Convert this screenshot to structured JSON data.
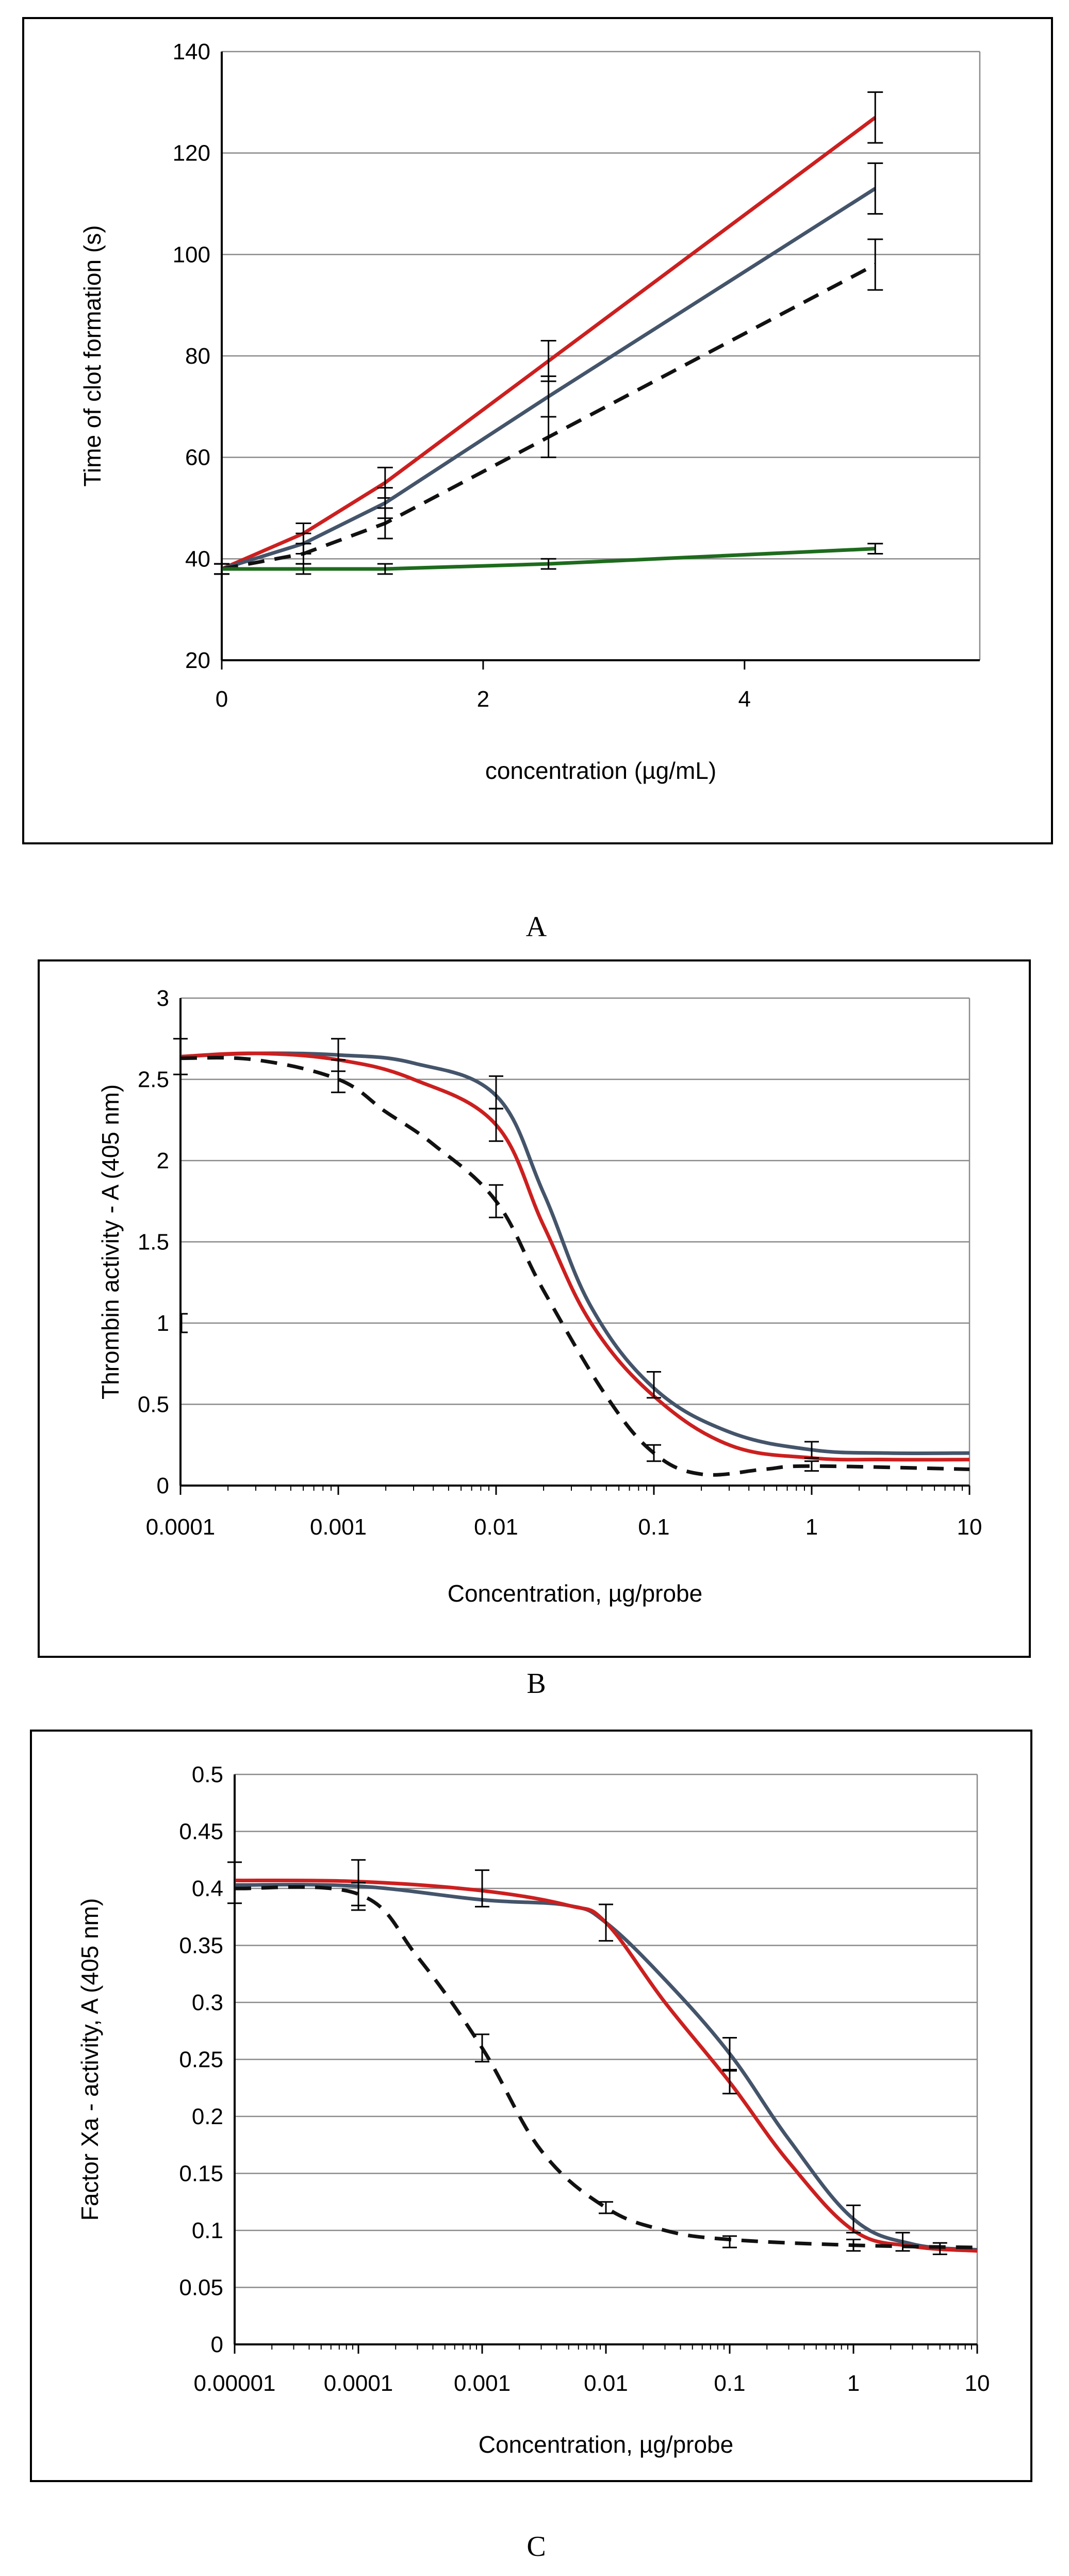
{
  "chart_data": [
    {
      "type": "line",
      "panel_label": "A",
      "title": "",
      "xlabel": "concentration (µg/mL)",
      "ylabel": "Time of clot formation (s)",
      "xscale": "linear",
      "xlim": [
        0,
        5.8
      ],
      "ylim": [
        20,
        140
      ],
      "grid": true,
      "x_ticks": [
        0,
        2,
        4
      ],
      "x_tick_labels": [
        "0",
        "2",
        "4"
      ],
      "y_ticks": [
        20,
        40,
        60,
        80,
        100,
        120,
        140
      ],
      "y_tick_labels": [
        "20",
        "40",
        "60",
        "80",
        "100",
        "120",
        "140"
      ],
      "series": [
        {
          "name": "red",
          "color": "#cc1f1f",
          "dash": "solid",
          "x": [
            0,
            0.625,
            1.25,
            2.5,
            5
          ],
          "values": [
            38,
            45,
            55,
            79,
            127
          ],
          "err": [
            1,
            2,
            3,
            4,
            5
          ]
        },
        {
          "name": "gray",
          "color": "#44546a",
          "dash": "solid",
          "x": [
            0,
            0.625,
            1.25,
            2.5,
            5
          ],
          "values": [
            38,
            43,
            51,
            72,
            113
          ],
          "err": [
            1,
            2,
            3,
            4,
            5
          ]
        },
        {
          "name": "black-dashed",
          "color": "#111111",
          "dash": "dashed",
          "x": [
            0,
            0.625,
            1.25,
            2.5,
            5
          ],
          "values": [
            38,
            41,
            47,
            64,
            98
          ],
          "err": [
            1,
            2,
            3,
            4,
            5
          ]
        },
        {
          "name": "green",
          "color": "#1e6b1e",
          "dash": "solid",
          "x": [
            0,
            0.625,
            1.25,
            2.5,
            5
          ],
          "values": [
            38,
            38,
            38,
            39,
            42
          ],
          "err": [
            1,
            1,
            1,
            1,
            1
          ]
        }
      ]
    },
    {
      "type": "line",
      "panel_label": "B",
      "title": "",
      "xlabel": "Concentration, µg/probe",
      "ylabel": "Thrombin activity - A (405 nm)",
      "xscale": "log",
      "xlim": [
        0.0001,
        10
      ],
      "ylim": [
        0,
        3
      ],
      "grid": true,
      "x_ticks": [
        0.0001,
        0.001,
        0.01,
        0.1,
        1,
        10
      ],
      "x_tick_labels": [
        "0.0001",
        "0.001",
        "0.01",
        "0.1",
        "1",
        "10"
      ],
      "y_ticks": [
        0,
        0.5,
        1,
        1.5,
        2,
        2.5,
        3
      ],
      "y_tick_labels": [
        "0",
        "0.5",
        "1",
        "1.5",
        "2",
        "2.5",
        "3"
      ],
      "series": [
        {
          "name": "gray",
          "color": "#44546a",
          "dash": "solid",
          "x": [
            0.0001,
            0.0003,
            0.001,
            0.003,
            0.01,
            0.02,
            0.04,
            0.1,
            0.3,
            1,
            3,
            10
          ],
          "values": [
            2.64,
            2.66,
            2.65,
            2.6,
            2.4,
            1.8,
            1.1,
            0.6,
            0.33,
            0.22,
            0.2,
            0.2
          ]
        },
        {
          "name": "red",
          "color": "#cc1f1f",
          "dash": "solid",
          "x": [
            0.0001,
            0.0003,
            0.001,
            0.003,
            0.01,
            0.02,
            0.04,
            0.1,
            0.3,
            1,
            3,
            10
          ],
          "values": [
            2.64,
            2.66,
            2.62,
            2.5,
            2.22,
            1.6,
            1.0,
            0.55,
            0.25,
            0.17,
            0.16,
            0.16
          ]
        },
        {
          "name": "black-dashed",
          "color": "#111111",
          "dash": "dashed",
          "x": [
            0.0001,
            0.0003,
            0.001,
            0.002,
            0.004,
            0.01,
            0.02,
            0.05,
            0.1,
            0.2,
            0.5,
            1,
            10
          ],
          "values": [
            2.63,
            2.62,
            2.5,
            2.3,
            2.1,
            1.75,
            1.2,
            0.55,
            0.2,
            0.07,
            0.1,
            0.12,
            0.1
          ]
        }
      ],
      "error_bars": [
        {
          "x": 0.0001,
          "y": 2.64,
          "err": 0.11
        },
        {
          "x": 0.001,
          "y": 2.65,
          "err": 0.1
        },
        {
          "x": 0.001,
          "y": 2.52,
          "err": 0.1
        },
        {
          "x": 0.01,
          "y": 2.42,
          "err": 0.1
        },
        {
          "x": 0.01,
          "y": 2.22,
          "err": 0.1
        },
        {
          "x": 0.01,
          "y": 1.75,
          "err": 0.1
        },
        {
          "x": 0.1,
          "y": 0.62,
          "err": 0.08
        },
        {
          "x": 0.1,
          "y": 0.2,
          "err": 0.05
        },
        {
          "x": 1,
          "y": 0.22,
          "err": 0.05
        },
        {
          "x": 1,
          "y": 0.12,
          "err": 0.03
        }
      ],
      "annotations": [
        {
          "x": 0.0001,
          "y": 1.0,
          "label": "stray tick"
        }
      ]
    },
    {
      "type": "line",
      "panel_label": "C",
      "title": "",
      "xlabel": "Concentration, µg/probe",
      "ylabel": "Factor Xa - activity, A (405 nm)",
      "xscale": "log",
      "xlim": [
        1e-05,
        10
      ],
      "ylim": [
        0,
        0.5
      ],
      "grid": true,
      "x_ticks": [
        1e-05,
        0.0001,
        0.001,
        0.01,
        0.1,
        1,
        10
      ],
      "x_tick_labels": [
        "0.00001",
        "0.0001",
        "0.001",
        "0.01",
        "0.1",
        "1",
        "10"
      ],
      "y_ticks": [
        0,
        0.05,
        0.1,
        0.15,
        0.2,
        0.25,
        0.3,
        0.35,
        0.4,
        0.45,
        0.5
      ],
      "y_tick_labels": [
        "0",
        "0.05",
        "0.1",
        "0.15",
        "0.2",
        "0.25",
        "0.3",
        "0.35",
        "0.4",
        "0.45",
        "0.5"
      ],
      "series": [
        {
          "name": "gray",
          "color": "#44546a",
          "dash": "solid",
          "x": [
            1e-05,
            0.0001,
            0.001,
            0.005,
            0.01,
            0.03,
            0.1,
            0.3,
            1,
            3,
            10
          ],
          "values": [
            0.403,
            0.402,
            0.39,
            0.385,
            0.37,
            0.32,
            0.255,
            0.18,
            0.11,
            0.088,
            0.083
          ]
        },
        {
          "name": "red",
          "color": "#cc1f1f",
          "dash": "solid",
          "x": [
            1e-05,
            0.0001,
            0.001,
            0.005,
            0.01,
            0.03,
            0.1,
            0.3,
            1,
            3,
            10
          ],
          "values": [
            0.407,
            0.406,
            0.398,
            0.385,
            0.37,
            0.3,
            0.23,
            0.16,
            0.1,
            0.086,
            0.082
          ]
        },
        {
          "name": "black-dashed",
          "color": "#111111",
          "dash": "dashed",
          "x": [
            1e-05,
            0.0001,
            0.0003,
            0.001,
            0.003,
            0.01,
            0.03,
            0.1,
            1,
            10
          ],
          "values": [
            0.4,
            0.395,
            0.34,
            0.26,
            0.17,
            0.12,
            0.1,
            0.092,
            0.087,
            0.085
          ]
        }
      ],
      "error_bars": [
        {
          "x": 1e-05,
          "y": 0.405,
          "err": 0.018
        },
        {
          "x": 0.0001,
          "y": 0.405,
          "err": 0.02
        },
        {
          "x": 0.0001,
          "y": 0.393,
          "err": 0.012
        },
        {
          "x": 0.001,
          "y": 0.4,
          "err": 0.016
        },
        {
          "x": 0.001,
          "y": 0.26,
          "err": 0.012
        },
        {
          "x": 0.01,
          "y": 0.37,
          "err": 0.016
        },
        {
          "x": 0.01,
          "y": 0.12,
          "err": 0.005
        },
        {
          "x": 0.1,
          "y": 0.255,
          "err": 0.014
        },
        {
          "x": 0.1,
          "y": 0.23,
          "err": 0.01
        },
        {
          "x": 0.1,
          "y": 0.09,
          "err": 0.005
        },
        {
          "x": 1,
          "y": 0.11,
          "err": 0.012
        },
        {
          "x": 1,
          "y": 0.087,
          "err": 0.005
        },
        {
          "x": 2.5,
          "y": 0.09,
          "err": 0.008
        },
        {
          "x": 5,
          "y": 0.084,
          "err": 0.005
        }
      ]
    }
  ]
}
